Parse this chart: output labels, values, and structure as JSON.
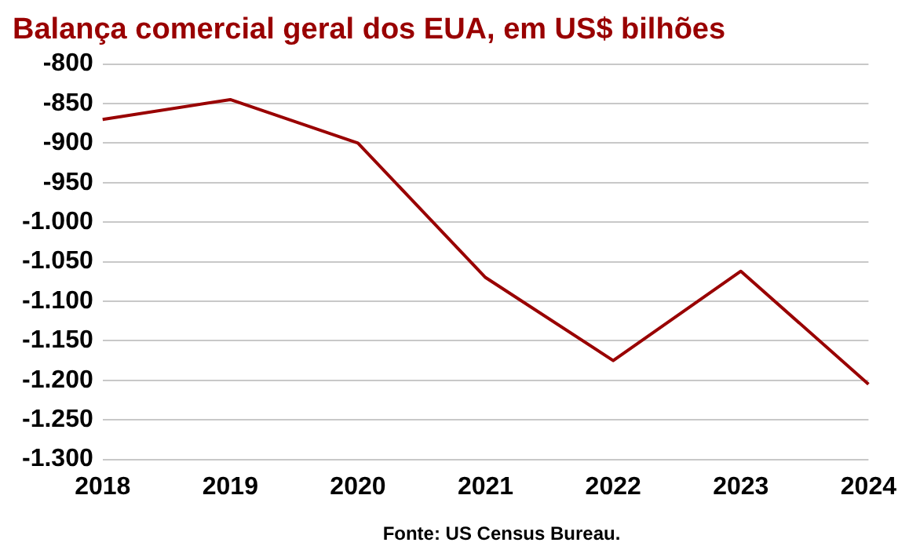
{
  "chart_data": {
    "type": "line",
    "title": "Balança comercial geral dos EUA, em US$ bilhões",
    "categories": [
      "2018",
      "2019",
      "2020",
      "2021",
      "2022",
      "2023",
      "2024"
    ],
    "series": [
      {
        "color": "#990000",
        "values": [
          -870,
          -845,
          -900,
          -1070,
          -1175,
          -1062,
          -1205
        ]
      }
    ],
    "ylim": [
      -1300,
      -800
    ],
    "yticks": [
      -800,
      -850,
      -900,
      -950,
      {
        "value": -1000,
        "label": "-1.000"
      },
      {
        "value": -1050,
        "label": "-1.050"
      },
      {
        "value": -1100,
        "label": "-1.100"
      },
      {
        "value": -1150,
        "label": "-1.150"
      },
      {
        "value": -1200,
        "label": "-1.200"
      },
      {
        "value": -1250,
        "label": "-1.250"
      },
      {
        "value": -1300,
        "label": "-1.300"
      }
    ],
    "grid": "y",
    "legend": false,
    "marker": "none",
    "line_style": "solid",
    "annotations": [
      "Fonte: US Census Bureau."
    ]
  }
}
